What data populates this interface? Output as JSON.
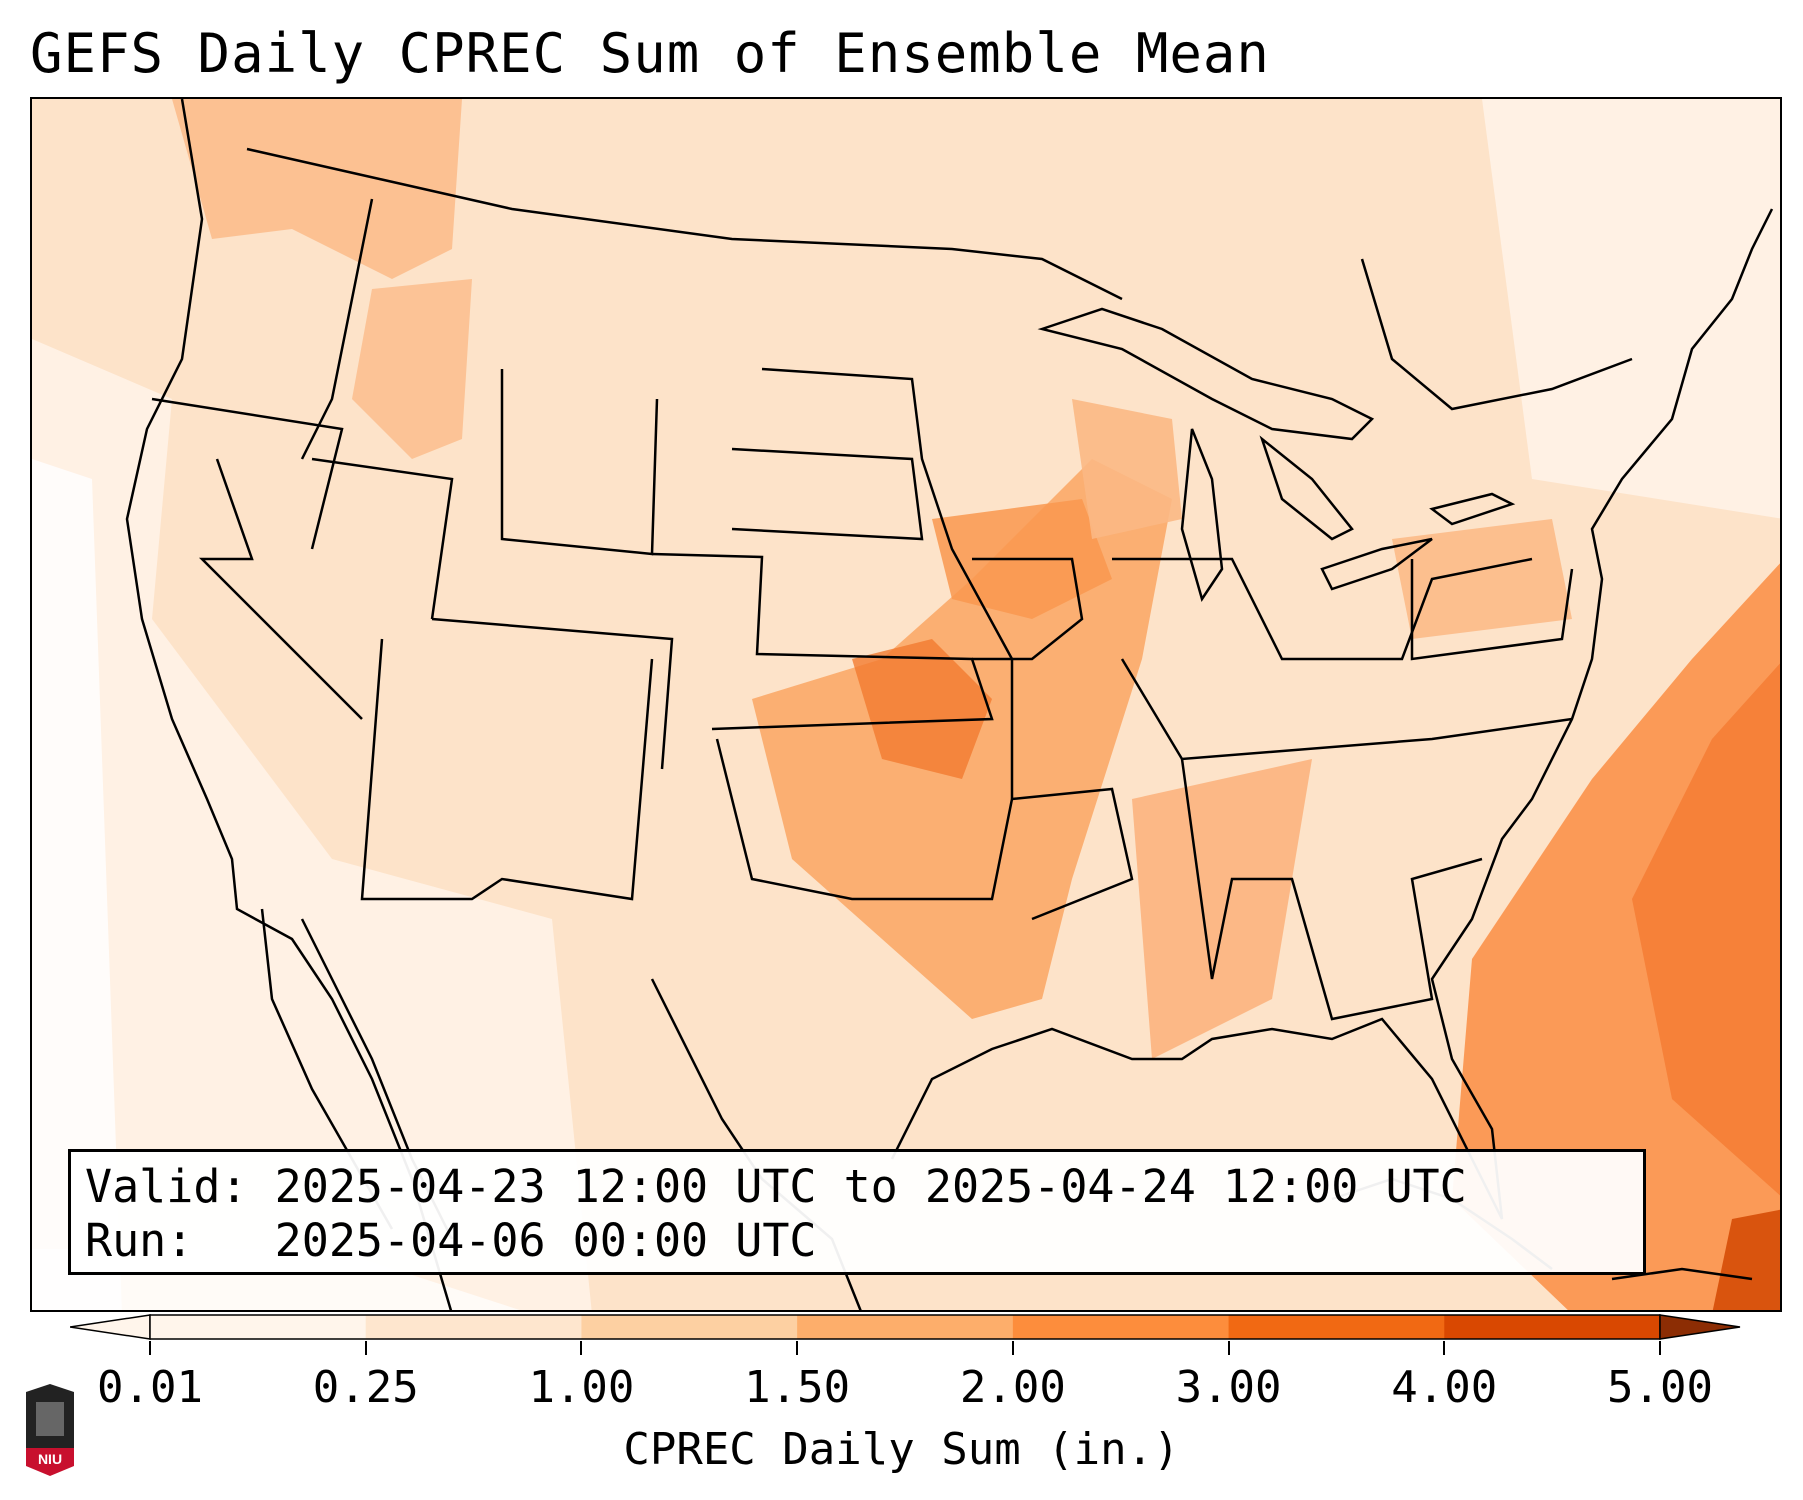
{
  "title": "GEFS Daily CPREC Sum of Ensemble Mean",
  "info": {
    "valid_label": "Valid:",
    "valid_value": "2025-04-23 12:00 UTC to 2025-04-24 12:00 UTC",
    "run_label": "Run:",
    "run_value": "2025-04-06 00:00 UTC"
  },
  "colorbar": {
    "label": "CPREC Daily Sum (in.)",
    "ticks": [
      "0.01",
      "0.25",
      "1.00",
      "1.50",
      "2.00",
      "3.00",
      "4.00",
      "5.00"
    ],
    "colors": [
      "#fff5eb",
      "#fee6ce",
      "#fdd0a2",
      "#fdae6b",
      "#fd8d3c",
      "#f16913",
      "#d94801",
      "#8c2d04"
    ]
  },
  "logo": {
    "text": "NIU",
    "color": "#c8102e"
  }
}
